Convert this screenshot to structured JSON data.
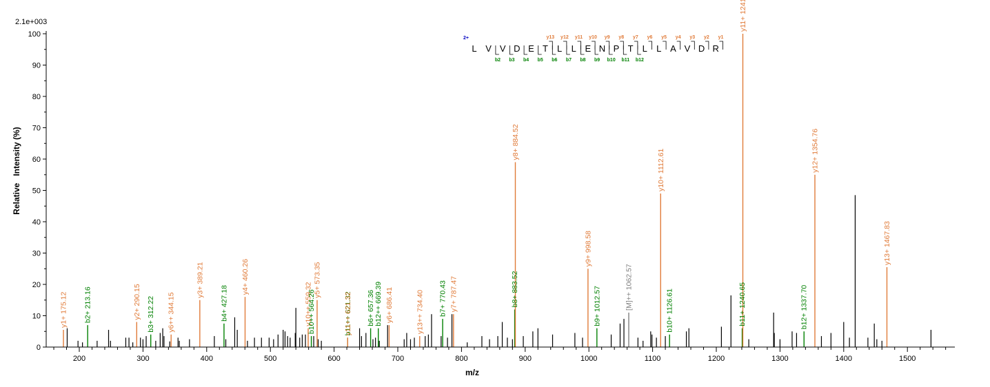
{
  "chart_data": {
    "type": "bar",
    "ymax_label": "2.1e+003",
    "xlabel": "m/z",
    "ylabel": "Relative   Intensity (%)",
    "xlim": [
      150,
      1575
    ],
    "ylim": [
      0,
      100
    ],
    "x_ticks": [
      200,
      300,
      400,
      500,
      600,
      700,
      800,
      900,
      1000,
      1100,
      1200,
      1300,
      1400,
      1500
    ],
    "y_ticks": [
      0,
      10,
      20,
      30,
      40,
      50,
      60,
      70,
      80,
      90,
      100
    ],
    "colors": {
      "y_ion": "#E07B39",
      "b_ion": "#008000",
      "precursor": "#808080",
      "other": "#000000",
      "charge": "#0000C0"
    },
    "labeled_peaks": [
      {
        "mz": 175.12,
        "intensity": 5.5,
        "ion": "y",
        "label": "y1+ 175.12"
      },
      {
        "mz": 213.16,
        "intensity": 7.0,
        "ion": "b",
        "label": "b2+ 213.16"
      },
      {
        "mz": 290.15,
        "intensity": 8.0,
        "ion": "y",
        "label": "y2+ 290.15"
      },
      {
        "mz": 312.22,
        "intensity": 4.0,
        "ion": "b",
        "label": "b3+ 312.22"
      },
      {
        "mz": 344.15,
        "intensity": 4.0,
        "ion": "y",
        "label": "y6++ 344.15"
      },
      {
        "mz": 389.21,
        "intensity": 15.0,
        "ion": "y",
        "label": "y3+ 389.21"
      },
      {
        "mz": 427.18,
        "intensity": 7.5,
        "ion": "b",
        "label": "b4+ 427.18"
      },
      {
        "mz": 460.26,
        "intensity": 16.0,
        "ion": "y",
        "label": "y4+ 460.26"
      },
      {
        "mz": 559.32,
        "intensity": 6.0,
        "ion": "y",
        "label": "y10++ 559.32"
      },
      {
        "mz": 564.26,
        "intensity": 3.5,
        "ion": "b",
        "label": "b10++ 564.26"
      },
      {
        "mz": 573.35,
        "intensity": 15.0,
        "ion": "y",
        "label": "y5+ 573.35"
      },
      {
        "mz": 621.32,
        "intensity": 3.0,
        "ion": "b",
        "label": "b11++ 621.32"
      },
      {
        "mz": 621.32,
        "intensity": 3.0,
        "ion": "y",
        "label": "y11++ 621.32"
      },
      {
        "mz": 657.36,
        "intensity": 6.0,
        "ion": "b",
        "label": "b6+ 657.36"
      },
      {
        "mz": 669.39,
        "intensity": 6.0,
        "ion": "b",
        "label": "b12++ 669.39"
      },
      {
        "mz": 686.41,
        "intensity": 7.0,
        "ion": "y",
        "label": "y6+ 686.41"
      },
      {
        "mz": 734.4,
        "intensity": 3.5,
        "ion": "y",
        "label": "y13++ 734.40"
      },
      {
        "mz": 770.43,
        "intensity": 9.0,
        "ion": "b",
        "label": "b7+ 770.43"
      },
      {
        "mz": 787.47,
        "intensity": 10.5,
        "ion": "y",
        "label": "y7+ 787.47"
      },
      {
        "mz": 883.52,
        "intensity": 12.0,
        "ion": "b",
        "label": "b8+ 883.52"
      },
      {
        "mz": 884.52,
        "intensity": 59.0,
        "ion": "y",
        "label": "y8+ 884.52"
      },
      {
        "mz": 998.58,
        "intensity": 25.0,
        "ion": "y",
        "label": "y9+ 998.58"
      },
      {
        "mz": 1012.57,
        "intensity": 6.0,
        "ion": "b",
        "label": "b9+ 1012.57"
      },
      {
        "mz": 1062.57,
        "intensity": 11.0,
        "ion": "precursor",
        "label": "[M]++ 1062.57"
      },
      {
        "mz": 1112.61,
        "intensity": 49.0,
        "ion": "y",
        "label": "y10+ 1112.61"
      },
      {
        "mz": 1126.61,
        "intensity": 4.0,
        "ion": "b",
        "label": "b10+ 1126.61"
      },
      {
        "mz": 1240.65,
        "intensity": 6.0,
        "ion": "b",
        "label": "b11+ 1240.65"
      },
      {
        "mz": 1241.66,
        "intensity": 100.0,
        "ion": "y",
        "label": "y11+ 1241.66"
      },
      {
        "mz": 1337.7,
        "intensity": 5.0,
        "ion": "b",
        "label": "b12+ 1337.70"
      },
      {
        "mz": 1354.76,
        "intensity": 55.0,
        "ion": "y",
        "label": "y12+ 1354.76"
      },
      {
        "mz": 1467.83,
        "intensity": 25.5,
        "ion": "y",
        "label": "y13+ 1467.83"
      }
    ],
    "unlabeled_peaks": [
      [
        181,
        6
      ],
      [
        198,
        2
      ],
      [
        205,
        1.5
      ],
      [
        228,
        2
      ],
      [
        246,
        5.5
      ],
      [
        249,
        2
      ],
      [
        273,
        3
      ],
      [
        278,
        3
      ],
      [
        284,
        1.5
      ],
      [
        296,
        3
      ],
      [
        300,
        2.5
      ],
      [
        305,
        3.5
      ],
      [
        320,
        2
      ],
      [
        327,
        4.5
      ],
      [
        331,
        6
      ],
      [
        333,
        3.5
      ],
      [
        342,
        1.8
      ],
      [
        355,
        3
      ],
      [
        357,
        2
      ],
      [
        373,
        2.5
      ],
      [
        412,
        3.5
      ],
      [
        430,
        2.5
      ],
      [
        444,
        9.5
      ],
      [
        448,
        5.5
      ],
      [
        464,
        2
      ],
      [
        475,
        3
      ],
      [
        486,
        3
      ],
      [
        498,
        3
      ],
      [
        505,
        2.5
      ],
      [
        512,
        4
      ],
      [
        520,
        5.5
      ],
      [
        523,
        5
      ],
      [
        527,
        3.5
      ],
      [
        531,
        3
      ],
      [
        539,
        4.5
      ],
      [
        540,
        12.5
      ],
      [
        546,
        3
      ],
      [
        550,
        4
      ],
      [
        555,
        4
      ],
      [
        568,
        3.5
      ],
      [
        575,
        2.5
      ],
      [
        580,
        2
      ],
      [
        640,
        6
      ],
      [
        643,
        3.5
      ],
      [
        650,
        4.5
      ],
      [
        661,
        2.5
      ],
      [
        665,
        3
      ],
      [
        671,
        2
      ],
      [
        684,
        7
      ],
      [
        710,
        2.5
      ],
      [
        714,
        4.5
      ],
      [
        720,
        2.5
      ],
      [
        726,
        3
      ],
      [
        743,
        3.5
      ],
      [
        748,
        4
      ],
      [
        753,
        10.5
      ],
      [
        768,
        3.5
      ],
      [
        778,
        3
      ],
      [
        785,
        10.5
      ],
      [
        809,
        1.5
      ],
      [
        832,
        3.5
      ],
      [
        844,
        2.5
      ],
      [
        857,
        3.5
      ],
      [
        864,
        8
      ],
      [
        872,
        3
      ],
      [
        880,
        2.5
      ],
      [
        897,
        3.5
      ],
      [
        912,
        5
      ],
      [
        920,
        6
      ],
      [
        943,
        4
      ],
      [
        978,
        4.5
      ],
      [
        990,
        3
      ],
      [
        1035,
        4
      ],
      [
        1049,
        7.5
      ],
      [
        1055,
        9
      ],
      [
        1077,
        3
      ],
      [
        1085,
        2
      ],
      [
        1097,
        5
      ],
      [
        1099,
        4
      ],
      [
        1106,
        3
      ],
      [
        1120,
        3.5
      ],
      [
        1153,
        5
      ],
      [
        1157,
        6
      ],
      [
        1208,
        6.5
      ],
      [
        1223,
        16.5
      ],
      [
        1251,
        2.5
      ],
      [
        1290,
        11
      ],
      [
        1291,
        4.5
      ],
      [
        1300,
        2.5
      ],
      [
        1319,
        5
      ],
      [
        1326,
        4.5
      ],
      [
        1365,
        3.5
      ],
      [
        1380,
        4.5
      ],
      [
        1400,
        8
      ],
      [
        1409,
        3
      ],
      [
        1418,
        48.5
      ],
      [
        1438,
        3
      ],
      [
        1448,
        7.5
      ],
      [
        1452,
        2.5
      ],
      [
        1460,
        2
      ],
      [
        1537,
        5.5
      ]
    ]
  },
  "sequence": {
    "charge": "2+",
    "letters": [
      "L",
      "V",
      "V",
      "D",
      "E",
      "T",
      "L",
      "L",
      "E",
      "N",
      "P",
      "T",
      "L",
      "L",
      "A",
      "V",
      "D",
      "R"
    ],
    "y_ions": [
      "y13",
      "y12",
      "y11",
      "y10",
      "y9",
      "y8",
      "y7",
      "y6",
      "y5",
      "y4",
      "y3",
      "y2",
      "y1"
    ],
    "b_ions": [
      "b2",
      "b3",
      "b4",
      "b5",
      "b6",
      "b7",
      "b8",
      "b9",
      "b10",
      "b11",
      "b12"
    ]
  }
}
